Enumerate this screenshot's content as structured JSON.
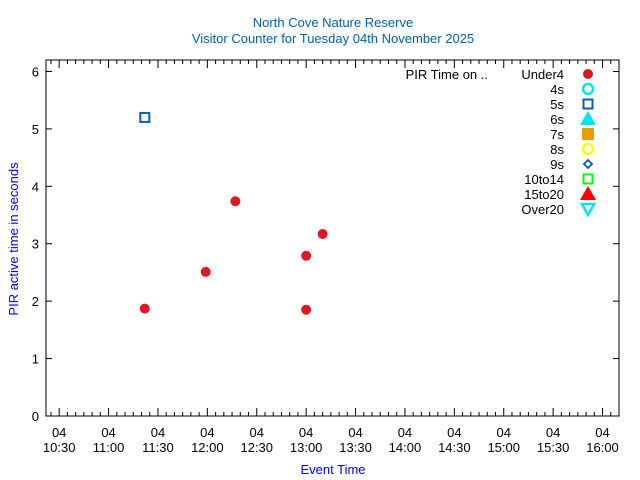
{
  "chart_data": {
    "type": "scatter",
    "title": "North Cove Nature Reserve",
    "subtitle": "Visitor Counter for Tuesday 04th November 2025",
    "xlabel": "Event Time",
    "ylabel": "PIR active time in seconds",
    "title_color": "#0060ad",
    "label_color": "#0000ff",
    "xlim": [
      "10:22",
      "16:10"
    ],
    "ylim": [
      0,
      6.2
    ],
    "grid": false,
    "legend_placement": "top-right",
    "legend_title": "PIR Time on ..",
    "x_ticks": [
      {
        "day": "04",
        "time": "10:30"
      },
      {
        "day": "04",
        "time": "11:00"
      },
      {
        "day": "04",
        "time": "11:30"
      },
      {
        "day": "04",
        "time": "12:00"
      },
      {
        "day": "04",
        "time": "12:30"
      },
      {
        "day": "04",
        "time": "13:00"
      },
      {
        "day": "04",
        "time": "13:30"
      },
      {
        "day": "04",
        "time": "14:00"
      },
      {
        "day": "04",
        "time": "14:30"
      },
      {
        "day": "04",
        "time": "15:00"
      },
      {
        "day": "04",
        "time": "15:30"
      },
      {
        "day": "04",
        "time": "16:00"
      }
    ],
    "y_ticks": [
      "0",
      "1",
      "2",
      "3",
      "4",
      "5",
      "6"
    ],
    "series": [
      {
        "name": "Under4",
        "marker": "filled-circle",
        "color": "#dd181f",
        "points": [
          [
            "11:22",
            1.87
          ],
          [
            "11:59",
            2.51
          ],
          [
            "12:17",
            3.74
          ],
          [
            "13:00",
            2.79
          ],
          [
            "13:00",
            1.85
          ],
          [
            "13:10",
            3.17
          ]
        ]
      },
      {
        "name": "4s",
        "marker": "open-circle",
        "color": "#00e5ee",
        "points": []
      },
      {
        "name": "5s",
        "marker": "open-square",
        "color": "#0060ad",
        "points": [
          [
            "11:22",
            5.2
          ]
        ]
      },
      {
        "name": "6s",
        "marker": "filled-triangle-up",
        "color": "#00e5ee",
        "points": []
      },
      {
        "name": "7s",
        "marker": "filled-square",
        "color": "#e69f00",
        "points": []
      },
      {
        "name": "8s",
        "marker": "open-circle",
        "color": "#ffff00",
        "points": []
      },
      {
        "name": "9s",
        "marker": "open-diamond",
        "color": "#0060ad",
        "points": []
      },
      {
        "name": "10to14",
        "marker": "open-square",
        "color": "#00ff00",
        "points": []
      },
      {
        "name": "15to20",
        "marker": "filled-triangle-up",
        "color": "#ff0000",
        "points": []
      },
      {
        "name": "Over20",
        "marker": "open-triangle-down",
        "color": "#00e5ee",
        "points": []
      }
    ]
  }
}
